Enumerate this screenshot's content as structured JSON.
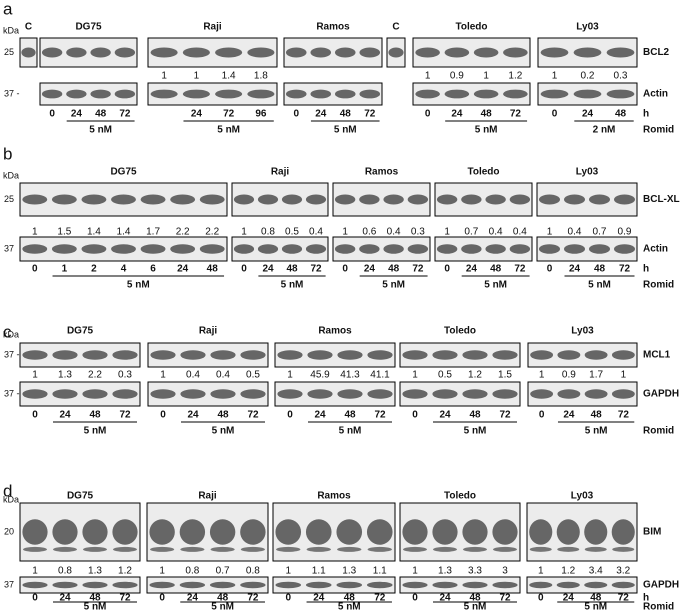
{
  "panels": [
    {
      "letter": "a",
      "kda": "kDa",
      "markers": [
        "25",
        "37 -"
      ],
      "targets": [
        "BCL2",
        "Actin"
      ],
      "hours_label": "h",
      "treatment_label": "Romid",
      "control_labels": [
        "C",
        "C"
      ],
      "groups": [
        {
          "name": "DG75",
          "quant": [],
          "times": [
            "0",
            "24",
            "48",
            "72"
          ],
          "dose": "5 nM"
        },
        {
          "name": "Raji",
          "quant": [
            "1",
            "1",
            "1.4",
            "1.8"
          ],
          "times": [
            "24",
            "72",
            "96"
          ],
          "dose": "5 nM"
        },
        {
          "name": "Ramos",
          "quant": [],
          "times": [
            "0",
            "24",
            "48",
            "72"
          ],
          "dose": "5 nM"
        },
        {
          "name": "Toledo",
          "quant": [
            "1",
            "0.9",
            "1",
            "1.2"
          ],
          "times": [
            "0",
            "24",
            "48",
            "72"
          ],
          "dose": "5 nM"
        },
        {
          "name": "Ly03",
          "quant": [
            "1",
            "0.2",
            "0.3"
          ],
          "times": [
            "0",
            "24",
            "48"
          ],
          "dose": "2 nM"
        }
      ]
    },
    {
      "letter": "b",
      "kda": "kDa",
      "markers": [
        "25",
        "37"
      ],
      "targets": [
        "BCL-XL",
        "Actin"
      ],
      "hours_label": "h",
      "treatment_label": "Romid",
      "groups": [
        {
          "name": "DG75",
          "quant": [
            "1",
            "1.5",
            "1.4",
            "1.4",
            "1.7",
            "2.2",
            "2.2"
          ],
          "times": [
            "0",
            "1",
            "2",
            "4",
            "6",
            "24",
            "48"
          ],
          "dose": "5 nM"
        },
        {
          "name": "Raji",
          "quant": [
            "1",
            "0.8",
            "0.5",
            "0.4"
          ],
          "times": [
            "0",
            "24",
            "48",
            "72"
          ],
          "dose": "5 nM"
        },
        {
          "name": "Ramos",
          "quant": [
            "1",
            "0.6",
            "0.4",
            "0.3"
          ],
          "times": [
            "0",
            "24",
            "48",
            "72"
          ],
          "dose": "5 nM"
        },
        {
          "name": "Toledo",
          "quant": [
            "1",
            "0.7",
            "0.4",
            "0.4"
          ],
          "times": [
            "0",
            "24",
            "48",
            "72"
          ],
          "dose": "5 nM"
        },
        {
          "name": "Ly03",
          "quant": [
            "1",
            "0.4",
            "0.7",
            "0.9"
          ],
          "times": [
            "0",
            "24",
            "48",
            "72"
          ],
          "dose": "5 nM"
        }
      ]
    },
    {
      "letter": "c",
      "kda": "kDa",
      "markers": [
        "37 -",
        "37 -"
      ],
      "targets": [
        "MCL1",
        "GAPDH"
      ],
      "treatment_label": "Romid",
      "groups": [
        {
          "name": "DG75",
          "quant": [
            "1",
            "1.3",
            "2.2",
            "0.3"
          ],
          "times": [
            "0",
            "24",
            "48",
            "72"
          ],
          "dose": "5 nM"
        },
        {
          "name": "Raji",
          "quant": [
            "1",
            "0.4",
            "0.4",
            "0.5"
          ],
          "times": [
            "0",
            "24",
            "48",
            "72"
          ],
          "dose": "5 nM"
        },
        {
          "name": "Ramos",
          "quant": [
            "1",
            "45.9",
            "41.3",
            "41.1"
          ],
          "times": [
            "0",
            "24",
            "48",
            "72"
          ],
          "dose": "5 nM"
        },
        {
          "name": "Toledo",
          "quant": [
            "1",
            "0.5",
            "1.2",
            "1.5"
          ],
          "times": [
            "0",
            "24",
            "48",
            "72"
          ],
          "dose": "5 nM"
        },
        {
          "name": "Ly03",
          "quant": [
            "1",
            "0.9",
            "1.7",
            "1"
          ],
          "times": [
            "0",
            "24",
            "48",
            "72"
          ],
          "dose": "5 nM"
        }
      ]
    },
    {
      "letter": "d",
      "kda": "kDa",
      "markers": [
        "20",
        "37"
      ],
      "targets": [
        "BIM",
        "GAPDH"
      ],
      "hours_label": "h",
      "treatment_label": "Romid",
      "groups": [
        {
          "name": "DG75",
          "quant": [
            "1",
            "0.8",
            "1.3",
            "1.2"
          ],
          "times": [
            "0",
            "24",
            "48",
            "72"
          ],
          "dose": "5 nM"
        },
        {
          "name": "Raji",
          "quant": [
            "1",
            "0.8",
            "0.7",
            "0.8"
          ],
          "times": [
            "0",
            "24",
            "48",
            "72"
          ],
          "dose": "5 nM"
        },
        {
          "name": "Ramos",
          "quant": [
            "1",
            "1.1",
            "1.3",
            "1.1"
          ],
          "times": [
            "0",
            "24",
            "48",
            "72"
          ],
          "dose": "5 nM"
        },
        {
          "name": "Toledo",
          "quant": [
            "1",
            "1.3",
            "3.3",
            "3"
          ],
          "times": [
            "0",
            "24",
            "48",
            "72"
          ],
          "dose": "5 nM"
        },
        {
          "name": "Ly03",
          "quant": [
            "1",
            "1.2",
            "3.4",
            "3.2"
          ],
          "times": [
            "0",
            "24",
            "48",
            "72"
          ],
          "dose": "5 nM"
        }
      ]
    }
  ]
}
